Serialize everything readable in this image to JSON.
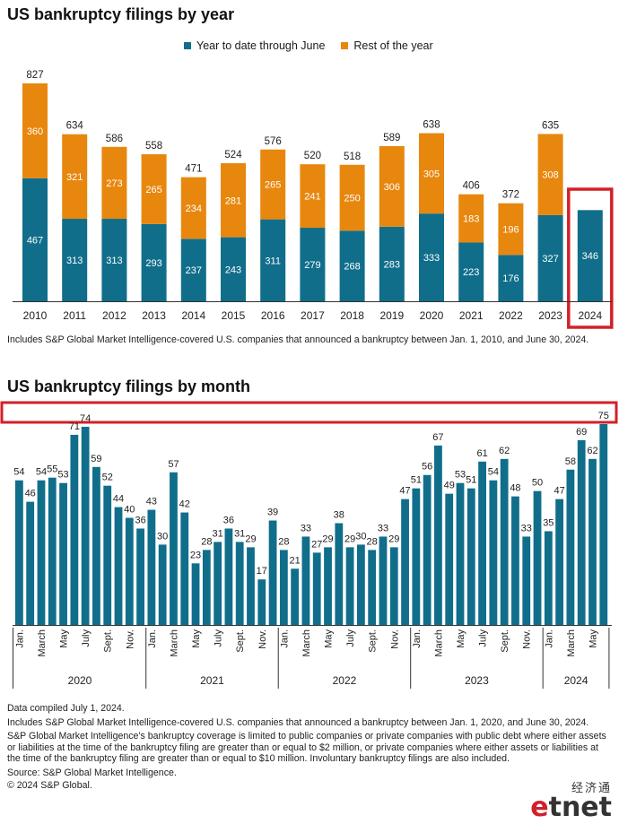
{
  "titles": {
    "top": "US bankruptcy filings by year",
    "bottom": "US bankruptcy filings by month"
  },
  "legend": {
    "ytd": "Year to date through June",
    "rest": "Rest of the year"
  },
  "colors": {
    "teal": "#106e8b",
    "orange": "#e8870e",
    "highlight": "#d32027",
    "axis": "#333333"
  },
  "note_top": "Includes S&P Global Market Intelligence-covered U.S. companies that announced a bankruptcy between Jan. 1, 2010, and June 30, 2024.",
  "notes_bottom": [
    "Data compiled July 1, 2024.",
    "Includes S&P Global Market Intelligence-covered U.S. companies that announced a bankruptcy between Jan. 1, 2020, and June 30, 2024.",
    "S&P Global Market Intelligence's bankruptcy coverage is limited to public companies or private companies with public debt where either assets or liabilities at the time of the bankruptcy filing are greater than or equal to $2 million, or private companies where either assets or liabilities at the time of the bankruptcy filing are greater than or equal to $10 million. Involuntary bankruptcy filings are also included.",
    "Source: S&P Global Market Intelligence.",
    "© 2024 S&P Global."
  ],
  "logo": {
    "cn": "经济通",
    "en_e": "e",
    "en_rest": "tnet"
  },
  "chart_data": [
    {
      "type": "bar",
      "stacked": true,
      "title": "US bankruptcy filings by year",
      "categories": [
        "2010",
        "2011",
        "2012",
        "2013",
        "2014",
        "2015",
        "2016",
        "2017",
        "2018",
        "2019",
        "2020",
        "2021",
        "2022",
        "2023",
        "2024"
      ],
      "series": [
        {
          "name": "Year to date through June",
          "values": [
            467,
            313,
            313,
            293,
            237,
            243,
            311,
            279,
            268,
            283,
            333,
            223,
            176,
            327,
            346
          ]
        },
        {
          "name": "Rest of the year",
          "values": [
            360,
            321,
            273,
            265,
            234,
            281,
            265,
            241,
            250,
            306,
            305,
            183,
            196,
            308,
            null
          ]
        }
      ],
      "totals": [
        827,
        634,
        586,
        558,
        471,
        524,
        576,
        520,
        518,
        589,
        638,
        406,
        372,
        635,
        null
      ],
      "highlighted_category": "2024",
      "legend_position": "top"
    },
    {
      "type": "bar",
      "title": "US bankruptcy filings by month",
      "values": [
        54,
        46,
        54,
        55,
        53,
        71,
        74,
        59,
        52,
        44,
        40,
        36,
        43,
        30,
        57,
        42,
        23,
        28,
        31,
        36,
        31,
        29,
        17,
        39,
        28,
        21,
        33,
        27,
        29,
        38,
        29,
        30,
        28,
        33,
        29,
        47,
        51,
        56,
        67,
        49,
        53,
        51,
        61,
        54,
        62,
        48,
        33,
        50,
        35,
        47,
        58,
        69,
        62,
        75
      ],
      "month_ticks": [
        "Jan.",
        "March",
        "May",
        "July",
        "Sept.",
        "Nov."
      ],
      "years": [
        "2020",
        "2021",
        "2022",
        "2023",
        "2024"
      ],
      "year_month_counts": [
        12,
        12,
        12,
        12,
        6
      ]
    }
  ]
}
